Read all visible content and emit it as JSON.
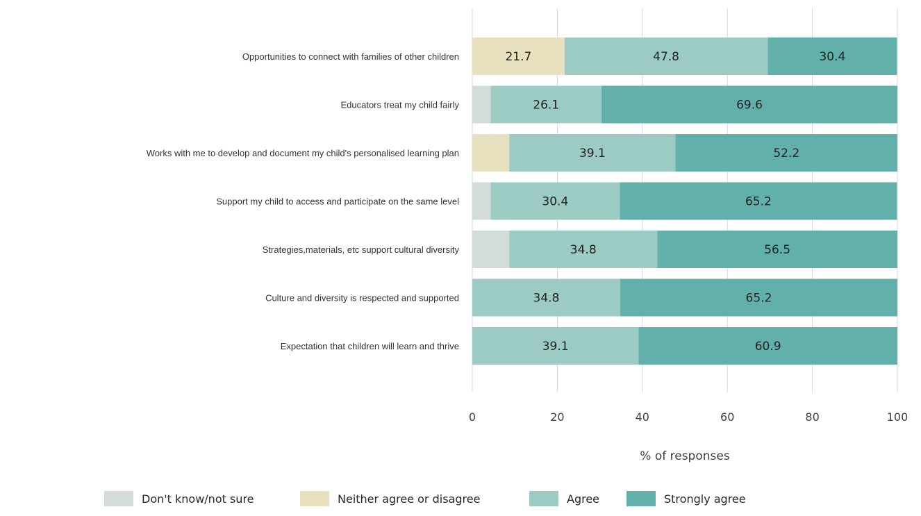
{
  "chart_data": {
    "type": "bar",
    "orientation": "horizontal",
    "stacked": true,
    "categories": [
      "Opportunities to connect with families of other children",
      "Educators treat my child fairly",
      "Works with me to develop and document my child's personalised learning plan",
      "Support my child to access and participate on the same level",
      "Strategies,materials, etc support cultural diversity",
      "Culture and diversity is respected and supported",
      "Expectation that children will learn and thrive"
    ],
    "series": [
      {
        "name": "Don't know/not sure",
        "color": "#d3dcd8",
        "values": [
          0,
          4.3,
          0,
          4.3,
          8.7,
          0,
          0
        ],
        "labels": [
          "",
          "",
          "",
          "",
          "",
          "",
          ""
        ]
      },
      {
        "name": "Neither agree or disagree",
        "color": "#e8e1bf",
        "values": [
          21.7,
          0,
          8.7,
          0,
          0,
          0,
          0
        ],
        "labels": [
          "21.7",
          "",
          "",
          "",
          "",
          "",
          ""
        ]
      },
      {
        "name": "Agree",
        "color": "#9ccbc4",
        "values": [
          47.8,
          26.1,
          39.1,
          30.4,
          34.8,
          34.8,
          39.1
        ],
        "labels": [
          "47.8",
          "26.1",
          "39.1",
          "30.4",
          "34.8",
          "34.8",
          "39.1"
        ]
      },
      {
        "name": "Strongly agree",
        "color": "#62b0aa",
        "values": [
          30.4,
          69.6,
          52.2,
          65.2,
          56.5,
          65.2,
          60.9
        ],
        "labels": [
          "30.4",
          "69.6",
          "52.2",
          "65.2",
          "56.5",
          "65.2",
          "60.9"
        ]
      }
    ],
    "xlabel": "% of responses",
    "xlim": [
      0,
      100
    ],
    "xticks": [
      "0",
      "20",
      "40",
      "60",
      "80",
      "100"
    ],
    "grid": "vertical",
    "legend_position": "bottom"
  }
}
